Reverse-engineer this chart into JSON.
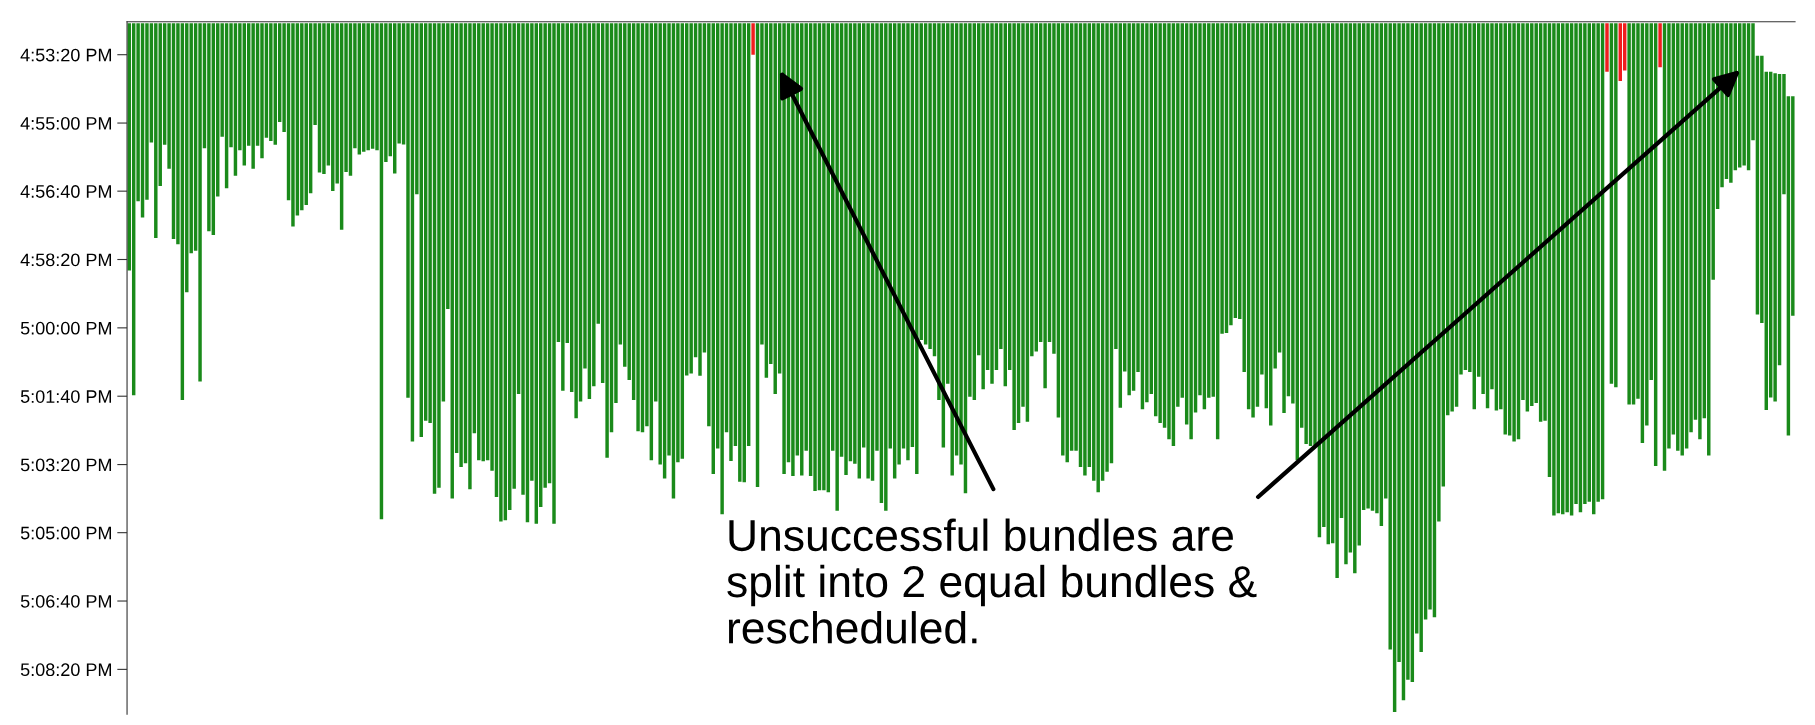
{
  "chart_data": {
    "type": "bar",
    "categories": [
      null,
      null,
      null,
      null,
      null,
      null,
      null,
      null,
      null,
      null,
      null,
      null,
      null,
      null,
      null,
      null,
      null,
      null,
      null,
      null,
      null,
      null,
      null,
      null,
      null,
      null,
      null,
      null,
      null,
      null,
      null,
      null,
      null,
      null,
      null,
      null,
      null,
      null,
      null,
      null,
      null,
      null,
      null,
      null,
      null,
      null,
      null,
      null,
      null,
      null,
      null,
      null,
      null,
      null,
      null,
      null,
      null,
      null,
      null,
      null,
      null,
      null,
      null,
      null,
      null,
      null,
      null,
      null,
      null,
      null,
      null,
      null,
      null,
      null,
      null,
      null,
      null,
      null,
      null,
      null,
      null,
      null,
      null,
      null,
      null,
      null,
      null,
      null,
      null,
      null,
      null,
      null,
      null,
      null,
      null,
      null,
      null,
      null,
      null,
      null,
      null,
      null,
      null,
      null,
      null,
      null,
      null,
      null,
      null,
      null,
      null,
      null,
      null,
      null,
      null,
      null,
      null,
      null,
      null,
      null,
      null,
      null,
      null,
      null,
      null,
      null,
      null,
      null,
      null,
      null,
      null,
      null,
      null,
      null,
      null,
      null,
      null,
      null,
      null,
      null,
      null,
      null,
      null,
      null,
      null,
      null,
      null,
      null,
      null,
      null,
      null,
      null,
      null,
      null,
      null,
      null,
      null,
      null,
      null,
      null,
      null,
      null,
      null,
      null,
      null,
      null,
      null,
      null,
      null,
      null,
      null,
      null,
      null,
      null,
      null,
      null,
      null,
      null,
      null,
      null,
      null,
      null,
      null,
      null,
      null,
      null,
      null,
      null,
      null,
      null,
      null,
      null,
      null,
      null,
      null,
      null,
      null,
      null,
      null,
      null,
      null,
      null,
      null,
      null,
      null,
      null,
      null,
      null,
      null,
      null,
      null,
      null,
      null,
      null,
      null,
      null,
      null,
      null,
      null,
      null,
      null,
      null,
      null,
      null,
      null,
      null,
      null,
      null,
      null,
      null,
      null,
      null,
      null,
      null,
      null,
      null,
      null,
      null,
      null,
      null,
      null,
      null,
      null,
      null,
      null,
      null,
      null,
      null,
      null,
      null,
      null,
      null,
      null,
      null,
      null,
      null,
      null,
      null,
      null,
      null,
      null,
      null,
      null,
      null,
      null,
      null,
      null,
      null,
      null,
      null,
      null,
      null,
      null,
      null,
      null,
      null,
      null,
      null,
      null,
      null,
      null,
      null,
      null,
      null,
      null,
      null,
      null,
      null,
      null,
      null,
      null,
      null,
      null,
      null,
      null,
      null,
      null,
      null,
      null,
      null,
      null,
      null,
      null,
      null,
      null,
      null,
      null,
      null,
      null,
      null,
      null,
      null,
      null,
      null,
      null,
      null,
      null,
      null,
      null,
      null,
      null,
      null,
      null,
      null,
      null,
      null,
      null,
      null,
      null,
      null,
      null,
      null,
      null,
      null,
      null,
      null,
      null,
      null,
      null,
      null,
      null,
      null,
      null,
      null,
      null,
      null,
      null,
      null,
      null,
      null,
      null,
      null,
      null,
      null,
      null,
      null,
      null,
      null,
      null,
      null,
      null,
      null,
      null,
      null,
      null,
      null,
      null,
      null,
      null,
      null,
      null,
      null,
      null,
      null,
      null,
      null,
      null
    ],
    "values": [
      0.1006,
      0.1513,
      0.0724,
      0.079,
      0.0718,
      0.0485,
      0.0874,
      0.0662,
      0.0494,
      0.0592,
      0.0878,
      0.0899,
      0.1532,
      0.1094,
      0.0936,
      0.0925,
      0.1457,
      0.0508,
      0.0846,
      0.0861,
      0.0705,
      0.0462,
      0.0671,
      0.0504,
      0.062,
      0.0517,
      0.0579,
      0.0498,
      0.0592,
      0.0498,
      0.0549,
      0.0466,
      0.0479,
      0.0494,
      0.0402,
      0.0442,
      0.072,
      0.0827,
      0.0782,
      0.0761,
      0.0739,
      0.0692,
      0.0414,
      0.0607,
      0.0613,
      0.0579,
      0.0682,
      0.0652,
      0.084,
      0.0605,
      0.062,
      0.0508,
      0.0534,
      0.0523,
      0.0517,
      0.0511,
      0.0517,
      0.2017,
      0.0564,
      0.0541,
      0.0611,
      0.0489,
      0.0493,
      0.1523,
      0.1701,
      0.0696,
      0.1683,
      0.1617,
      0.1626,
      0.1914,
      0.1889,
      0.1538,
      0.1162,
      0.1933,
      0.1748,
      0.1805,
      0.179,
      0.1895,
      0.1668,
      0.1777,
      0.1782,
      0.1777,
      0.182,
      0.1927,
      0.2027,
      0.2021,
      0.198,
      0.1893,
      0.1508,
      0.1918,
      0.203,
      0.1861,
      0.2036,
      0.1968,
      0.1889,
      0.1871,
      0.2036,
      0.1297,
      0.1495,
      0.1301,
      0.15,
      0.1607,
      0.1538,
      0.1404,
      0.1528,
      0.1476,
      0.1222,
      0.1463,
      0.1767,
      0.1664,
      0.1545,
      0.1307,
      0.1397,
      0.1451,
      0.1532,
      0.166,
      0.1664,
      0.1639,
      0.1777,
      0.1538,
      0.1795,
      0.1852,
      0.1758,
      0.1933,
      0.1786,
      0.1771,
      0.1433,
      0.1425,
      0.1359,
      0.1434,
      0.1339,
      0.1639,
      0.1833,
      0.173,
      0.1997,
      0.1664,
      0.178,
      0.172,
      0.1865,
      0.1867,
      0.172,
      0.0128,
      0.1886,
      0.1307,
      0.1442,
      0.1386,
      0.1508,
      0.1425,
      0.1833,
      0.1786,
      0.1842,
      0.1758,
      0.1839,
      0.1739,
      0.1842,
      0.1903,
      0.1899,
      0.1899,
      0.1908,
      0.1739,
      0.1983,
      0.1763,
      0.1837,
      0.1782,
      0.1792,
      0.1852,
      0.1726,
      0.1852,
      0.1861,
      0.1739,
      0.1951,
      0.1983,
      0.173,
      0.1852,
      0.1795,
      0.173,
      0.1777,
      0.1724,
      0.1833,
      0.1288,
      0.1307,
      0.1325,
      0.1354,
      0.1532,
      0.1726,
      0.1466,
      0.1839,
      0.1758,
      0.1795,
      0.1912,
      0.1519,
      0.1532,
      0.135,
      0.1489,
      0.141,
      0.1466,
      0.141,
      0.1325,
      0.1476,
      0.141,
      0.1654,
      0.1626,
      0.156,
      0.1621,
      0.1354,
      0.1335,
      0.1297,
      0.1485,
      0.1297,
      0.1344,
      0.1604,
      0.1758,
      0.1786,
      0.1739,
      0.1739,
      0.1805,
      0.1839,
      0.1805,
      0.1861,
      0.1908,
      0.1861,
      0.1824,
      0.179,
      0.1325,
      0.1564,
      0.1416,
      0.1513,
      0.1495,
      0.1419,
      0.157,
      0.1542,
      0.1508,
      0.1598,
      0.1626,
      0.1645,
      0.1692,
      0.172,
      0.156,
      0.1523,
      0.1632,
      0.1692,
      0.1583,
      0.1513,
      0.157,
      0.1523,
      0.1519,
      0.1692,
      0.1263,
      0.126,
      0.1228,
      0.1199,
      0.1203,
      0.1419,
      0.157,
      0.1604,
      0.156,
      0.1429,
      0.1566,
      0.1636,
      0.1404,
      0.1339,
      0.1585,
      0.1517,
      0.1547,
      0.1777,
      0.1645,
      0.1711,
      0.172,
      0.1715,
      0.2091,
      0.2049,
      0.2119,
      0.2115,
      0.2256,
      0.2012,
      0.22,
      0.2153,
      0.2237,
      0.2124,
      0.198,
      0.1974,
      0.1983,
      0.1993,
      0.2045,
      0.1933,
      0.2547,
      0.2801,
      0.2598,
      0.2754,
      0.267,
      0.2679,
      0.2482,
      0.2557,
      0.2425,
      0.2384,
      0.2416,
      0.2027,
      0.1884,
      0.1594,
      0.1579,
      0.156,
      0.1429,
      0.141,
      0.1419,
      0.157,
      0.1438,
      0.1508,
      0.1566,
      0.1489,
      0.1575,
      0.157,
      0.1673,
      0.1677,
      0.1701,
      0.1692,
      0.1532,
      0.1579,
      0.1557,
      0.1545,
      0.1621,
      0.1617,
      0.1846,
      0.2002,
      0.1993,
      0.1997,
      0.1989,
      0.2002,
      0.1955,
      0.1989,
      0.1955,
      0.1946,
      0.1997,
      0.1946,
      0.1936,
      0.0197,
      0.1466,
      0.1481,
      0.0235,
      0.0192,
      0.1551,
      0.1551,
      0.1527,
      0.1707,
      0.1636,
      0.1451,
      0.1801,
      0.0179,
      0.182,
      0.173,
      0.1673,
      0.1739,
      0.1758,
      0.173,
      0.1664,
      0.1613,
      0.1692,
      0.1607,
      0.1758,
      0.1043,
      0.0756,
      0.0667,
      0.0634,
      0.0649,
      0.0598,
      0.0587,
      0.0579,
      0.0598,
      0.0476,
      0.1053,
      0.1087,
      0.1376,
      0.1325,
      0.1335,
      0.1184,
      0.0489,
      0.138,
      0.0893
    ],
    "base": [
      16.8761,
      16.8761,
      16.8761,
      16.8761,
      16.8761,
      16.8761,
      16.8761,
      16.8761,
      16.8761,
      16.8761,
      16.8761,
      16.8761,
      16.8761,
      16.8761,
      16.8761,
      16.8761,
      16.8761,
      16.8761,
      16.8761,
      16.8761,
      16.8761,
      16.8761,
      16.8761,
      16.8761,
      16.8761,
      16.8761,
      16.8761,
      16.8761,
      16.8761,
      16.8761,
      16.8761,
      16.8761,
      16.8761,
      16.8761,
      16.8761,
      16.8761,
      16.8761,
      16.8761,
      16.8761,
      16.8761,
      16.8761,
      16.8761,
      16.8761,
      16.8761,
      16.8761,
      16.8761,
      16.8761,
      16.8761,
      16.8761,
      16.8761,
      16.8761,
      16.8761,
      16.8761,
      16.8761,
      16.8761,
      16.8761,
      16.8761,
      16.8761,
      16.8761,
      16.8761,
      16.8761,
      16.8761,
      16.8761,
      16.8761,
      16.8761,
      16.8761,
      16.8761,
      16.8761,
      16.8761,
      16.8761,
      16.8761,
      16.8761,
      16.8761,
      16.8761,
      16.8761,
      16.8761,
      16.8761,
      16.8761,
      16.8761,
      16.8761,
      16.8761,
      16.8761,
      16.8761,
      16.8761,
      16.8761,
      16.8761,
      16.8761,
      16.8761,
      16.8761,
      16.8761,
      16.8761,
      16.8761,
      16.8761,
      16.8761,
      16.8761,
      16.8761,
      16.8761,
      16.8761,
      16.8761,
      16.8761,
      16.8761,
      16.8761,
      16.8761,
      16.8761,
      16.8761,
      16.8761,
      16.8761,
      16.8761,
      16.8761,
      16.8761,
      16.8761,
      16.8761,
      16.8761,
      16.8761,
      16.8761,
      16.8761,
      16.8761,
      16.8761,
      16.8761,
      16.8761,
      16.8761,
      16.8761,
      16.8761,
      16.8761,
      16.8761,
      16.8761,
      16.8761,
      16.8761,
      16.8761,
      16.8761,
      16.8761,
      16.8761,
      16.8761,
      16.8761,
      16.8761,
      16.8761,
      16.8761,
      16.8761,
      16.8761,
      16.8761,
      16.8761,
      16.8761,
      16.8761,
      16.8761,
      16.8761,
      16.8761,
      16.8761,
      16.8761,
      16.8761,
      16.8761,
      16.8761,
      16.8761,
      16.8761,
      16.8761,
      16.8761,
      16.8761,
      16.8761,
      16.8761,
      16.8761,
      16.8761,
      16.8761,
      16.8761,
      16.8761,
      16.8761,
      16.8761,
      16.8761,
      16.8761,
      16.8761,
      16.8761,
      16.8761,
      16.8761,
      16.8761,
      16.8761,
      16.8761,
      16.8761,
      16.8761,
      16.8761,
      16.8761,
      16.8761,
      16.8761,
      16.8761,
      16.8761,
      16.8761,
      16.8761,
      16.8761,
      16.8761,
      16.8761,
      16.8761,
      16.8761,
      16.8761,
      16.8761,
      16.8761,
      16.8761,
      16.8761,
      16.8761,
      16.8761,
      16.8761,
      16.8761,
      16.8761,
      16.8761,
      16.8761,
      16.8761,
      16.8761,
      16.8761,
      16.8761,
      16.8761,
      16.8761,
      16.8761,
      16.8761,
      16.8761,
      16.8761,
      16.8761,
      16.8761,
      16.8761,
      16.8761,
      16.8761,
      16.8761,
      16.8761,
      16.8761,
      16.8761,
      16.8761,
      16.8761,
      16.8761,
      16.8761,
      16.8761,
      16.8761,
      16.8761,
      16.8761,
      16.8761,
      16.8761,
      16.8761,
      16.8761,
      16.8761,
      16.8761,
      16.8761,
      16.8761,
      16.8761,
      16.8761,
      16.8761,
      16.8761,
      16.8761,
      16.8761,
      16.8761,
      16.8761,
      16.8761,
      16.8761,
      16.8761,
      16.8761,
      16.8761,
      16.8761,
      16.8761,
      16.8761,
      16.8761,
      16.8761,
      16.8761,
      16.8761,
      16.8761,
      16.8761,
      16.8761,
      16.8761,
      16.8761,
      16.8761,
      16.8761,
      16.8761,
      16.8761,
      16.8761,
      16.8761,
      16.8761,
      16.8761,
      16.8761,
      16.8761,
      16.8761,
      16.8761,
      16.8761,
      16.8761,
      16.8761,
      16.8761,
      16.8761,
      16.8761,
      16.8761,
      16.8761,
      16.8761,
      16.8761,
      16.8761,
      16.8761,
      16.8761,
      16.8761,
      16.8761,
      16.8761,
      16.8761,
      16.8761,
      16.8761,
      16.8761,
      16.8761,
      16.8761,
      16.8761,
      16.8761,
      16.8761,
      16.8761,
      16.8761,
      16.8761,
      16.8761,
      16.8761,
      16.8761,
      16.8761,
      16.8761,
      16.8761,
      16.8761,
      16.8761,
      16.8761,
      16.8761,
      16.8761,
      16.8761,
      16.8761,
      16.8761,
      16.8761,
      16.8761,
      16.8761,
      16.8761,
      16.8761,
      16.8761,
      16.8761,
      16.8761,
      16.8761,
      16.8761,
      16.8761,
      16.8761,
      16.8761,
      16.8761,
      16.8761,
      16.8761,
      16.8761,
      16.8761,
      16.8761,
      16.8761,
      16.8761,
      16.8761,
      16.8761,
      16.8761,
      16.8761,
      16.8761,
      16.8761,
      16.8761,
      16.8761,
      16.8761,
      16.8761,
      16.8761,
      16.8761,
      16.8761,
      16.8761,
      16.8761,
      16.8761,
      16.8761,
      16.8761,
      16.8761,
      16.8761,
      16.8761,
      16.8761,
      16.8761,
      16.8761,
      16.8761,
      16.8761,
      16.8761,
      16.8761,
      16.8761,
      16.8761,
      16.8761,
      16.8761,
      16.8893,
      16.8893,
      16.8958,
      16.8958,
      16.8964,
      16.8968,
      16.8968,
      16.9058,
      16.9058
    ],
    "colors": [
      "#1a8a1a",
      "#1a8a1a",
      "#1a8a1a",
      "#1a8a1a",
      "#1a8a1a",
      "#1a8a1a",
      "#1a8a1a",
      "#1a8a1a",
      "#1a8a1a",
      "#1a8a1a",
      "#1a8a1a",
      "#1a8a1a",
      "#1a8a1a",
      "#1a8a1a",
      "#1a8a1a",
      "#1a8a1a",
      "#1a8a1a",
      "#1a8a1a",
      "#1a8a1a",
      "#1a8a1a",
      "#1a8a1a",
      "#1a8a1a",
      "#1a8a1a",
      "#1a8a1a",
      "#1a8a1a",
      "#1a8a1a",
      "#1a8a1a",
      "#1a8a1a",
      "#1a8a1a",
      "#1a8a1a",
      "#1a8a1a",
      "#1a8a1a",
      "#1a8a1a",
      "#1a8a1a",
      "#1a8a1a",
      "#1a8a1a",
      "#1a8a1a",
      "#1a8a1a",
      "#1a8a1a",
      "#1a8a1a",
      "#1a8a1a",
      "#1a8a1a",
      "#1a8a1a",
      "#1a8a1a",
      "#1a8a1a",
      "#1a8a1a",
      "#1a8a1a",
      "#1a8a1a",
      "#1a8a1a",
      "#1a8a1a",
      "#1a8a1a",
      "#1a8a1a",
      "#1a8a1a",
      "#1a8a1a",
      "#1a8a1a",
      "#1a8a1a",
      "#1a8a1a",
      "#1a8a1a",
      "#1a8a1a",
      "#1a8a1a",
      "#1a8a1a",
      "#1a8a1a",
      "#1a8a1a",
      "#1a8a1a",
      "#1a8a1a",
      "#1a8a1a",
      "#1a8a1a",
      "#1a8a1a",
      "#1a8a1a",
      "#1a8a1a",
      "#1a8a1a",
      "#1a8a1a",
      "#1a8a1a",
      "#1a8a1a",
      "#1a8a1a",
      "#1a8a1a",
      "#1a8a1a",
      "#1a8a1a",
      "#1a8a1a",
      "#1a8a1a",
      "#1a8a1a",
      "#1a8a1a",
      "#1a8a1a",
      "#1a8a1a",
      "#1a8a1a",
      "#1a8a1a",
      "#1a8a1a",
      "#1a8a1a",
      "#1a8a1a",
      "#1a8a1a",
      "#1a8a1a",
      "#1a8a1a",
      "#1a8a1a",
      "#1a8a1a",
      "#1a8a1a",
      "#1a8a1a",
      "#1a8a1a",
      "#1a8a1a",
      "#1a8a1a",
      "#1a8a1a",
      "#1a8a1a",
      "#1a8a1a",
      "#1a8a1a",
      "#1a8a1a",
      "#1a8a1a",
      "#1a8a1a",
      "#1a8a1a",
      "#1a8a1a",
      "#1a8a1a",
      "#1a8a1a",
      "#1a8a1a",
      "#1a8a1a",
      "#1a8a1a",
      "#1a8a1a",
      "#1a8a1a",
      "#1a8a1a",
      "#1a8a1a",
      "#1a8a1a",
      "#1a8a1a",
      "#1a8a1a",
      "#1a8a1a",
      "#1a8a1a",
      "#1a8a1a",
      "#1a8a1a",
      "#1a8a1a",
      "#1a8a1a",
      "#1a8a1a",
      "#1a8a1a",
      "#1a8a1a",
      "#1a8a1a",
      "#1a8a1a",
      "#1a8a1a",
      "#1a8a1a",
      "#1a8a1a",
      "#1a8a1a",
      "#1a8a1a",
      "#1a8a1a",
      "#1a8a1a",
      "#1a8a1a",
      "#1a8a1a",
      "#1a8a1a",
      "#f01e1e",
      "#1a8a1a",
      "#1a8a1a",
      "#1a8a1a",
      "#1a8a1a",
      "#1a8a1a",
      "#1a8a1a",
      "#1a8a1a",
      "#1a8a1a",
      "#1a8a1a",
      "#1a8a1a",
      "#1a8a1a",
      "#1a8a1a",
      "#1a8a1a",
      "#1a8a1a",
      "#1a8a1a",
      "#1a8a1a",
      "#1a8a1a",
      "#1a8a1a",
      "#1a8a1a",
      "#1a8a1a",
      "#1a8a1a",
      "#1a8a1a",
      "#1a8a1a",
      "#1a8a1a",
      "#1a8a1a",
      "#1a8a1a",
      "#1a8a1a",
      "#1a8a1a",
      "#1a8a1a",
      "#1a8a1a",
      "#1a8a1a",
      "#1a8a1a",
      "#1a8a1a",
      "#1a8a1a",
      "#1a8a1a",
      "#1a8a1a",
      "#1a8a1a",
      "#1a8a1a",
      "#1a8a1a",
      "#1a8a1a",
      "#1a8a1a",
      "#1a8a1a",
      "#1a8a1a",
      "#1a8a1a",
      "#1a8a1a",
      "#1a8a1a",
      "#1a8a1a",
      "#1a8a1a",
      "#1a8a1a",
      "#1a8a1a",
      "#1a8a1a",
      "#1a8a1a",
      "#1a8a1a",
      "#1a8a1a",
      "#1a8a1a",
      "#1a8a1a",
      "#1a8a1a",
      "#1a8a1a",
      "#1a8a1a",
      "#1a8a1a",
      "#1a8a1a",
      "#1a8a1a",
      "#1a8a1a",
      "#1a8a1a",
      "#1a8a1a",
      "#1a8a1a",
      "#1a8a1a",
      "#1a8a1a",
      "#1a8a1a",
      "#1a8a1a",
      "#1a8a1a",
      "#1a8a1a",
      "#1a8a1a",
      "#1a8a1a",
      "#1a8a1a",
      "#1a8a1a",
      "#1a8a1a",
      "#1a8a1a",
      "#1a8a1a",
      "#1a8a1a",
      "#1a8a1a",
      "#1a8a1a",
      "#1a8a1a",
      "#1a8a1a",
      "#1a8a1a",
      "#1a8a1a",
      "#1a8a1a",
      "#1a8a1a",
      "#1a8a1a",
      "#1a8a1a",
      "#1a8a1a",
      "#1a8a1a",
      "#1a8a1a",
      "#1a8a1a",
      "#1a8a1a",
      "#1a8a1a",
      "#1a8a1a",
      "#1a8a1a",
      "#1a8a1a",
      "#1a8a1a",
      "#1a8a1a",
      "#1a8a1a",
      "#1a8a1a",
      "#1a8a1a",
      "#1a8a1a",
      "#1a8a1a",
      "#1a8a1a",
      "#1a8a1a",
      "#1a8a1a",
      "#1a8a1a",
      "#1a8a1a",
      "#1a8a1a",
      "#1a8a1a",
      "#1a8a1a",
      "#1a8a1a",
      "#1a8a1a",
      "#1a8a1a",
      "#1a8a1a",
      "#1a8a1a",
      "#1a8a1a",
      "#1a8a1a",
      "#1a8a1a",
      "#1a8a1a",
      "#1a8a1a",
      "#1a8a1a",
      "#1a8a1a",
      "#1a8a1a",
      "#1a8a1a",
      "#1a8a1a",
      "#1a8a1a",
      "#1a8a1a",
      "#1a8a1a",
      "#1a8a1a",
      "#1a8a1a",
      "#1a8a1a",
      "#1a8a1a",
      "#1a8a1a",
      "#1a8a1a",
      "#1a8a1a",
      "#1a8a1a",
      "#1a8a1a",
      "#1a8a1a",
      "#1a8a1a",
      "#1a8a1a",
      "#1a8a1a",
      "#1a8a1a",
      "#1a8a1a",
      "#1a8a1a",
      "#1a8a1a",
      "#1a8a1a",
      "#1a8a1a",
      "#1a8a1a",
      "#1a8a1a",
      "#1a8a1a",
      "#1a8a1a",
      "#1a8a1a",
      "#1a8a1a",
      "#1a8a1a",
      "#1a8a1a",
      "#1a8a1a",
      "#1a8a1a",
      "#1a8a1a",
      "#1a8a1a",
      "#1a8a1a",
      "#1a8a1a",
      "#1a8a1a",
      "#1a8a1a",
      "#1a8a1a",
      "#1a8a1a",
      "#1a8a1a",
      "#1a8a1a",
      "#1a8a1a",
      "#1a8a1a",
      "#1a8a1a",
      "#1a8a1a",
      "#1a8a1a",
      "#1a8a1a",
      "#1a8a1a",
      "#1a8a1a",
      "#1a8a1a",
      "#1a8a1a",
      "#1a8a1a",
      "#1a8a1a",
      "#1a8a1a",
      "#1a8a1a",
      "#1a8a1a",
      "#1a8a1a",
      "#1a8a1a",
      "#1a8a1a",
      "#1a8a1a",
      "#1a8a1a",
      "#1a8a1a",
      "#f01e1e",
      "#1a8a1a",
      "#1a8a1a",
      "#f01e1e",
      "#f01e1e",
      "#1a8a1a",
      "#1a8a1a",
      "#1a8a1a",
      "#1a8a1a",
      "#1a8a1a",
      "#1a8a1a",
      "#1a8a1a",
      "#f01e1e",
      "#1a8a1a",
      "#1a8a1a",
      "#1a8a1a",
      "#1a8a1a",
      "#1a8a1a",
      "#1a8a1a",
      "#1a8a1a",
      "#1a8a1a",
      "#1a8a1a",
      "#1a8a1a",
      "#1a8a1a",
      "#1a8a1a",
      "#1a8a1a",
      "#1a8a1a",
      "#1a8a1a",
      "#1a8a1a",
      "#1a8a1a",
      "#1a8a1a",
      "#1a8a1a",
      "#1a8a1a",
      "#1a8a1a",
      "#1a8a1a",
      "#1a8a1a",
      "#1a8a1a",
      "#1a8a1a",
      "#1a8a1a",
      "#1a8a1a",
      "#1a8a1a",
      "#1a8a1a",
      "#1a8a1a"
    ],
    "ylim": [
      17.1571,
      16.8755
    ],
    "yticks": [
      {
        "value": 16.8889,
        "label": "4:53:20 PM"
      },
      {
        "value": 16.9167,
        "label": "4:55:00 PM"
      },
      {
        "value": 16.9444,
        "label": "4:56:40 PM"
      },
      {
        "value": 16.9722,
        "label": "4:58:20 PM"
      },
      {
        "value": 17.0,
        "label": "5:00:00 PM"
      },
      {
        "value": 17.0278,
        "label": "5:01:40 PM"
      },
      {
        "value": 17.0556,
        "label": "5:03:20 PM"
      },
      {
        "value": 17.0833,
        "label": "5:05:00 PM"
      },
      {
        "value": 17.1111,
        "label": "5:06:40 PM"
      },
      {
        "value": 17.1389,
        "label": "5:08:20 PM"
      }
    ],
    "tick_labels": "y",
    "annotations": [
      "Unsuccessful bundles are\nsplit into 2 equal bundles &\nrescheduled."
    ]
  }
}
